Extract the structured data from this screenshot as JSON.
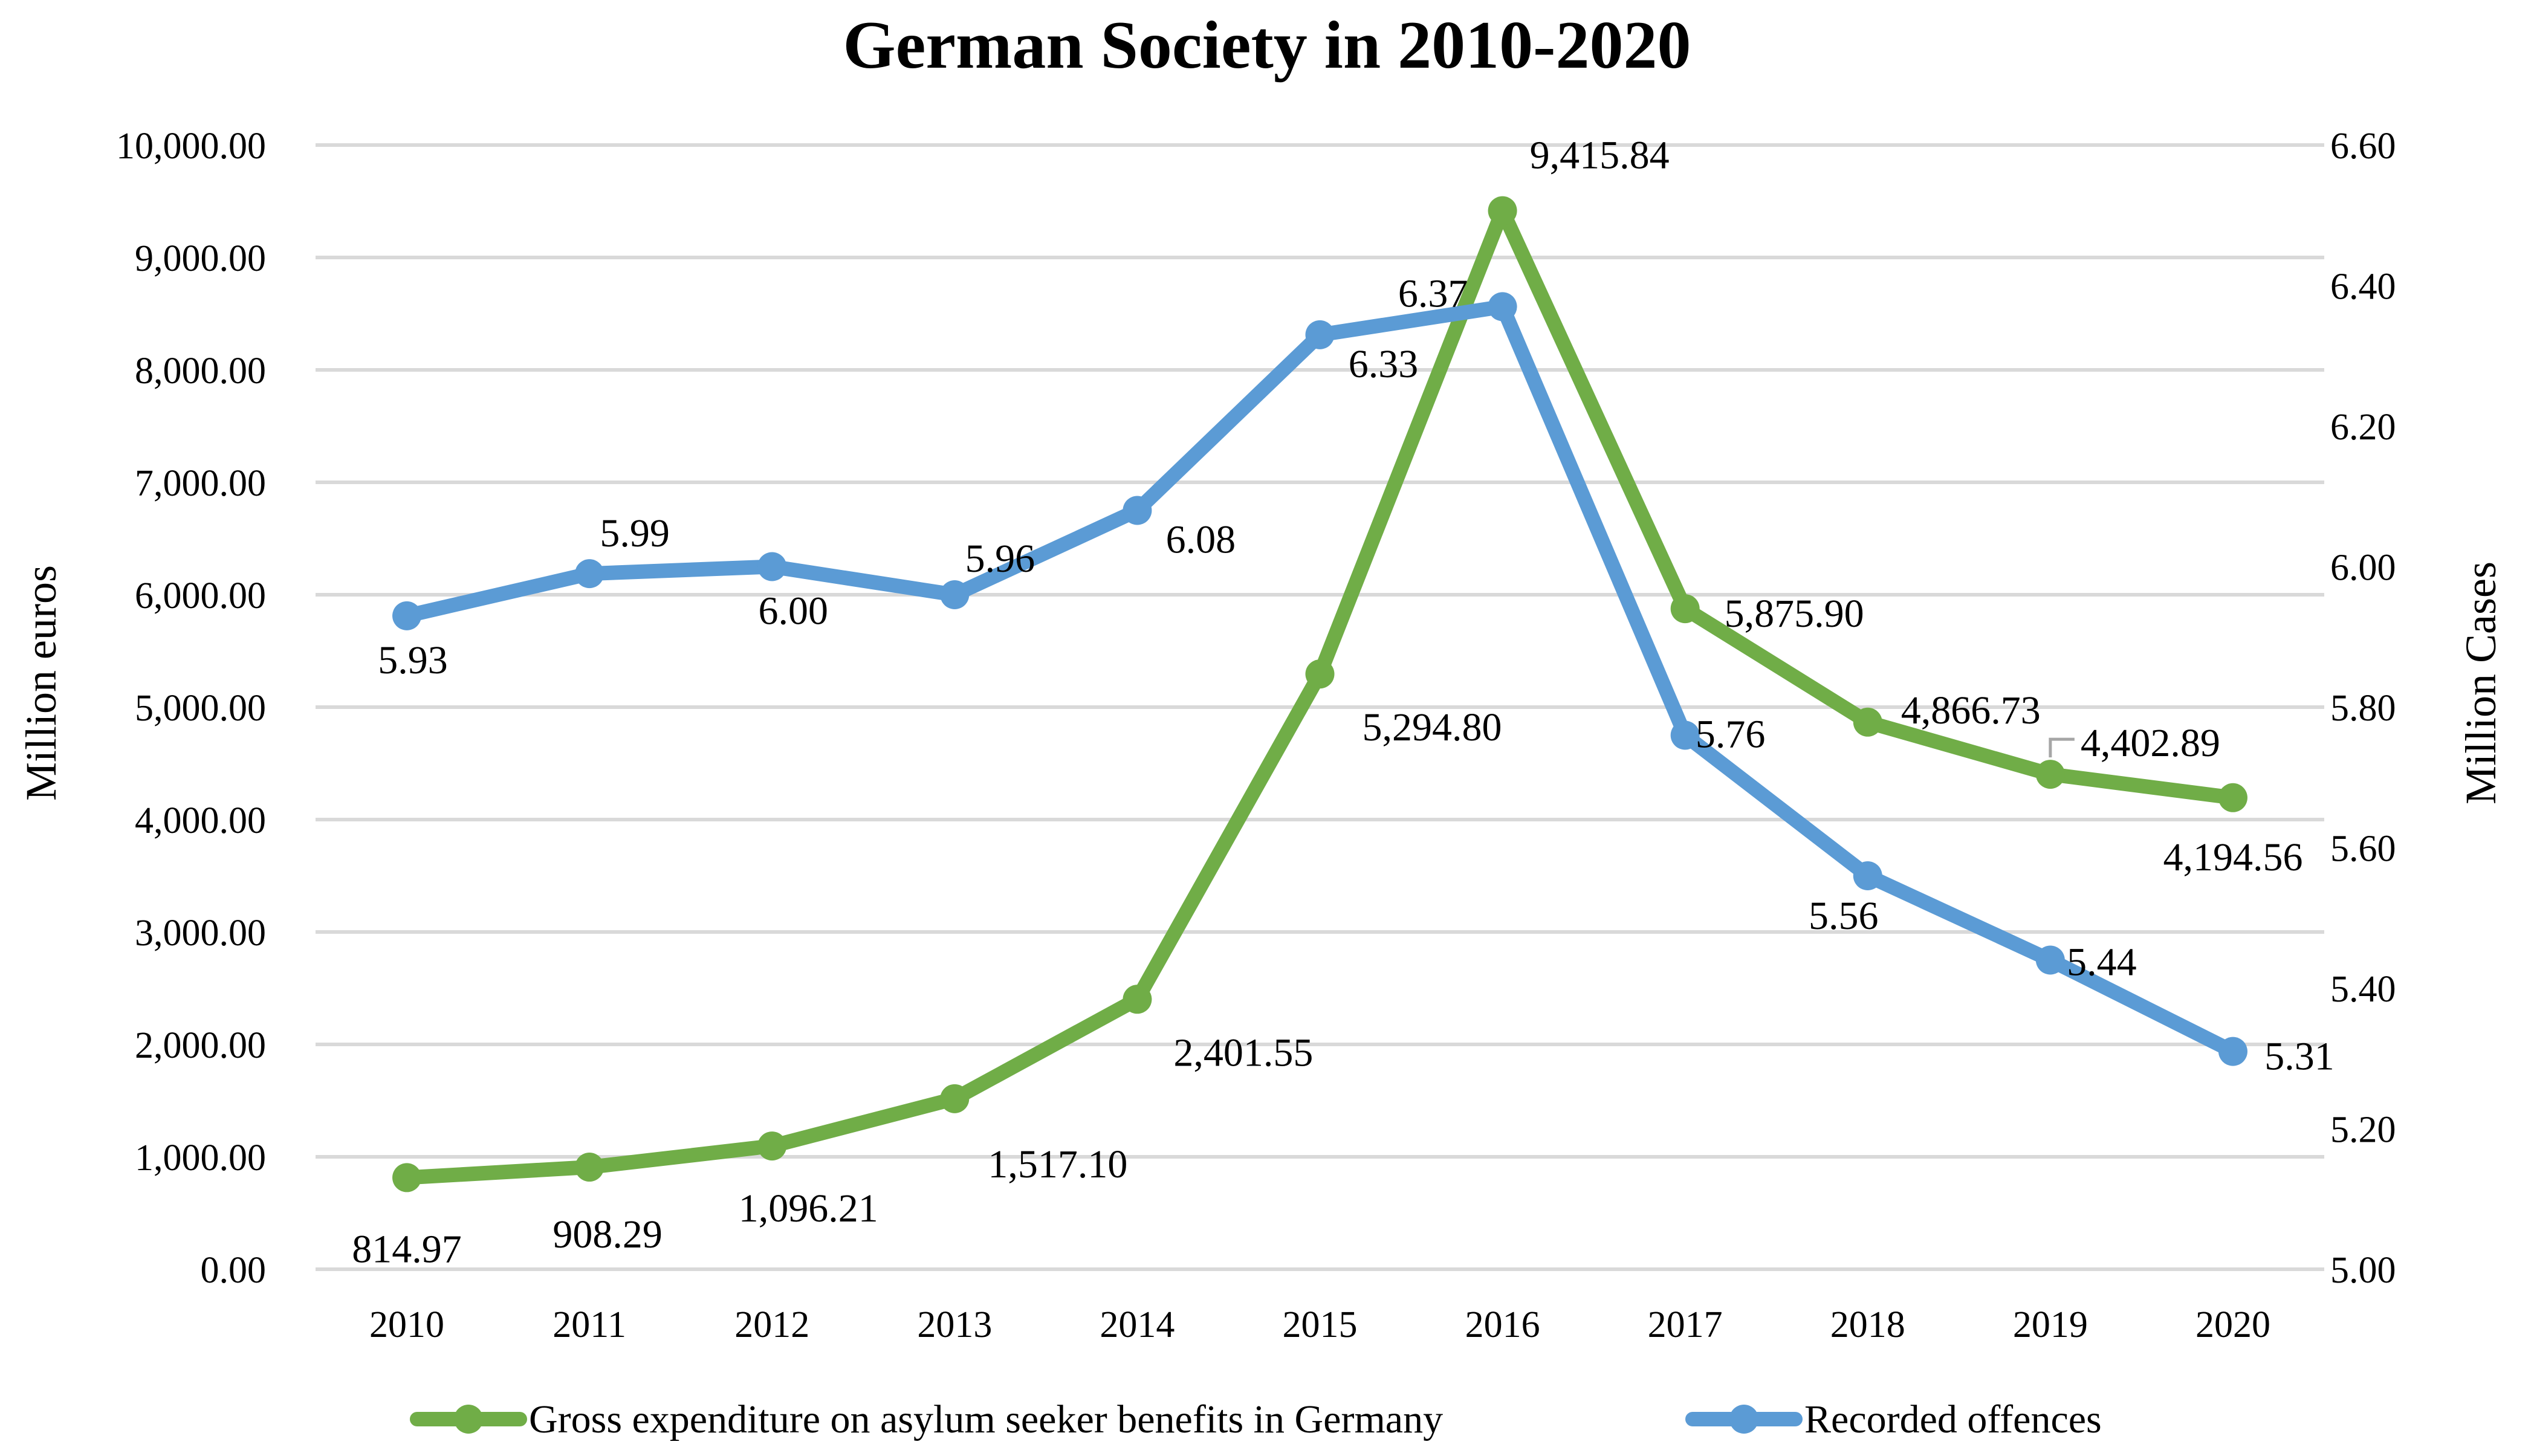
{
  "chart_data": {
    "type": "line",
    "title": "German Society in 2010-2020",
    "x": [
      "2010",
      "2011",
      "2012",
      "2013",
      "2014",
      "2015",
      "2016",
      "2017",
      "2018",
      "2019",
      "2020"
    ],
    "ylabel": "Million euros",
    "y2label": "Million Cases",
    "ylim": [
      0,
      10000
    ],
    "y2lim": [
      5.0,
      6.6
    ],
    "y_ticks": [
      "0.00",
      "1,000.00",
      "2,000.00",
      "3,000.00",
      "4,000.00",
      "5,000.00",
      "6,000.00",
      "7,000.00",
      "8,000.00",
      "9,000.00",
      "10,000.00"
    ],
    "y2_ticks": [
      "5.00",
      "5.20",
      "5.40",
      "5.60",
      "5.80",
      "6.00",
      "6.20",
      "6.40",
      "6.60"
    ],
    "grid": true,
    "legend_position": "bottom",
    "series": [
      {
        "name": "Gross expenditure on asylum seeker benefits in Germany",
        "axis": "left",
        "color": "#70ad47",
        "values": [
          814.97,
          908.29,
          1096.21,
          1517.1,
          2401.55,
          5294.8,
          9415.84,
          5875.9,
          4866.73,
          4402.89,
          4194.56
        ],
        "labels": [
          "814.97",
          "908.29",
          "1,096.21",
          "1,517.10",
          "2,401.55",
          "5,294.80",
          "9,415.84",
          "5,875.90",
          "4,866.73",
          "4,402.89",
          "4,194.56"
        ]
      },
      {
        "name": "Recorded offences",
        "axis": "right",
        "color": "#5b9bd5",
        "values": [
          5.93,
          5.99,
          6.0,
          5.96,
          6.08,
          6.33,
          6.37,
          5.76,
          5.56,
          5.44,
          5.31
        ],
        "labels": [
          "5.93",
          "5.99",
          "6.00",
          "5.96",
          "6.08",
          "6.33",
          "6.37",
          "5.76",
          "5.56",
          "5.44",
          "5.31"
        ]
      }
    ]
  }
}
